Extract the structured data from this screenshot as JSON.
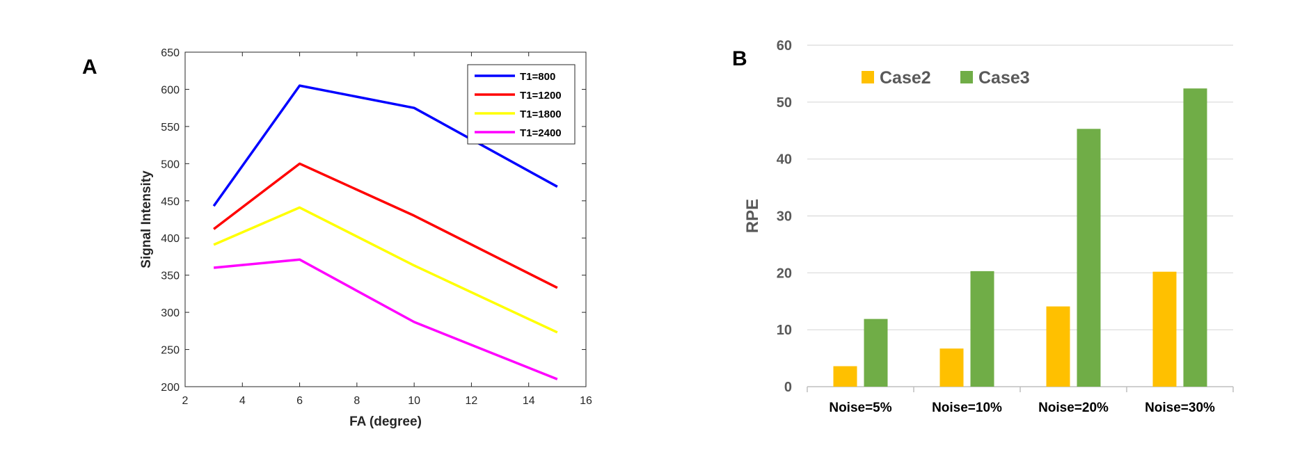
{
  "chart_data": [
    {
      "panel": "A",
      "type": "line",
      "title": "",
      "xlabel": "FA  (degree)",
      "ylabel": "Signal Intensity",
      "xlim": [
        2,
        16
      ],
      "ylim": [
        200,
        650
      ],
      "xticks": [
        "2",
        "4",
        "6",
        "8",
        "10",
        "12",
        "14",
        "16"
      ],
      "yticks": [
        "200",
        "250",
        "300",
        "350",
        "400",
        "450",
        "500",
        "550",
        "600",
        "650"
      ],
      "grid": false,
      "legend_position": "top-right",
      "x": [
        3,
        6,
        10,
        15
      ],
      "series": [
        {
          "name": "T1=800",
          "color": "#0000ff",
          "values": [
            443,
            605,
            575,
            469
          ]
        },
        {
          "name": "T1=1200",
          "color": "#ff0000",
          "values": [
            412,
            500,
            430,
            333
          ]
        },
        {
          "name": "T1=1800",
          "color": "#ffff00",
          "values": [
            391,
            441,
            363,
            273
          ]
        },
        {
          "name": "T1=2400",
          "color": "#ff00ff",
          "values": [
            360,
            371,
            287,
            210
          ]
        }
      ]
    },
    {
      "panel": "B",
      "type": "bar",
      "title": "",
      "xlabel": "",
      "ylabel": "RPE",
      "ylim": [
        0,
        60
      ],
      "yticks": [
        "0",
        "10",
        "20",
        "30",
        "40",
        "50",
        "60"
      ],
      "grid": true,
      "legend_position": "top-left",
      "categories": [
        "Noise=5%",
        "Noise=10%",
        "Noise=20%",
        "Noise=30%"
      ],
      "series": [
        {
          "name": "Case2",
          "color": "#ffc000",
          "values": [
            3.6,
            6.7,
            14.1,
            20.2
          ]
        },
        {
          "name": "Case3",
          "color": "#70ad47",
          "values": [
            11.9,
            20.3,
            45.3,
            52.4
          ]
        }
      ]
    }
  ]
}
